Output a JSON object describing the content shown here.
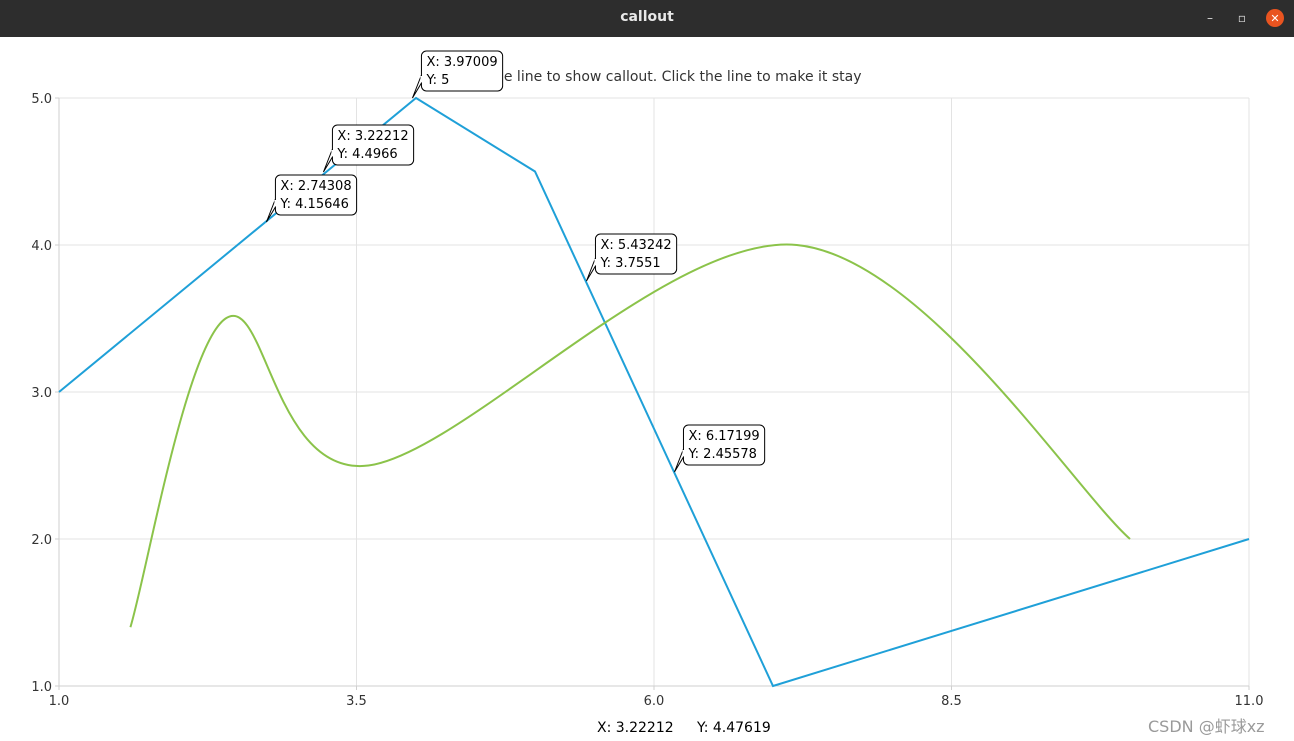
{
  "window": {
    "title": "callout",
    "minimize_glyph": "–",
    "maximize_glyph": "▫",
    "close_glyph": "✕"
  },
  "icons": {
    "minimize": "minimize-icon",
    "maximize": "maximize-icon",
    "close": "close-icon"
  },
  "chart_data": {
    "type": "line",
    "title": "Hover the line to show callout. Click the line to make it stay",
    "title_visible_part": "he line to show callout. Click the line to make it stay",
    "xlim": [
      1.0,
      11.0
    ],
    "ylim": [
      1.0,
      5.0
    ],
    "x_ticks": [
      "1.0",
      "3.5",
      "6.0",
      "8.5",
      "11.0"
    ],
    "y_ticks": [
      "5.0",
      "4.0",
      "3.0",
      "2.0",
      "1.0"
    ],
    "grid": true,
    "series": [
      {
        "color": "#1fa0d8",
        "x": [
          1,
          4,
          5,
          7,
          11
        ],
        "y": [
          3,
          5,
          4.5,
          1,
          2
        ]
      },
      {
        "color": "#8bc34a",
        "x": [
          1.6,
          2.4,
          3.6,
          7.2,
          10
        ],
        "y": [
          1.4,
          3.5,
          2.5,
          4.0,
          2.0
        ]
      }
    ],
    "callouts": [
      {
        "x": "3.97009",
        "y": "5",
        "x_label": "X: 3.97009",
        "y_label": "Y: 5"
      },
      {
        "x": "3.22212",
        "y": "4.4966",
        "x_label": "X: 3.22212",
        "y_label": "Y: 4.4966"
      },
      {
        "x": "2.74308",
        "y": "4.15646",
        "x_label": "X: 2.74308",
        "y_label": "Y: 4.15646"
      },
      {
        "x": "5.43242",
        "y": "3.7551",
        "x_label": "X: 5.43242",
        "y_label": "Y: 3.7551"
      },
      {
        "x": "6.17199",
        "y": "2.45578",
        "x_label": "X: 6.17199",
        "y_label": "Y: 2.45578"
      }
    ]
  },
  "status": {
    "x_text": "X: 3.22212",
    "y_text": "Y: 4.47619"
  },
  "watermark": "CSDN @虾球xz"
}
